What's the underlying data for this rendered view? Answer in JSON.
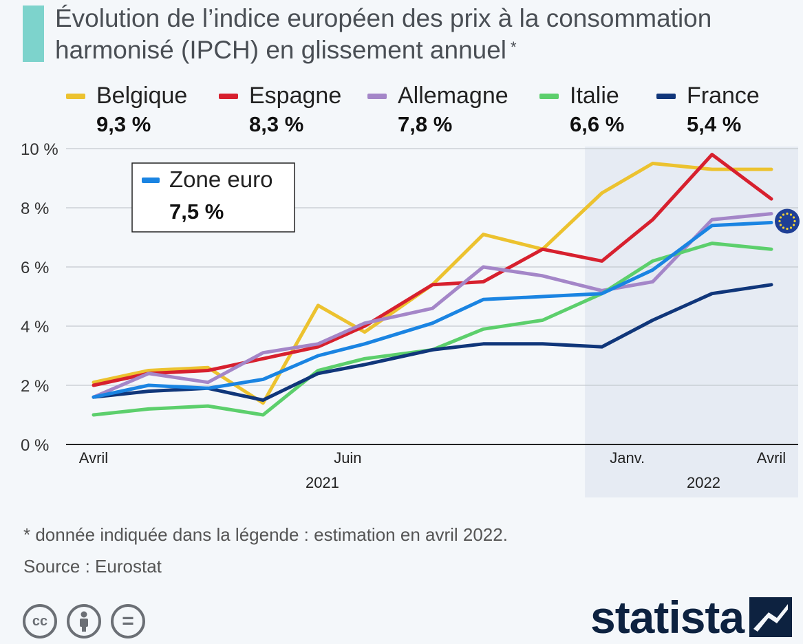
{
  "title": {
    "text": "Évolution de l’indice européen des prix à la consommation harmonisé (IPCH) en glissement annuel",
    "asterisk": "*"
  },
  "legend": [
    {
      "name": "Belgique",
      "value": "9,3 %",
      "color": "#ecc22f"
    },
    {
      "name": "Espagne",
      "value": "8,3 %",
      "color": "#d7202e"
    },
    {
      "name": "Allemagne",
      "value": "7,8 %",
      "color": "#a486c8"
    },
    {
      "name": "Italie",
      "value": "6,6 %",
      "color": "#5ccf6c"
    },
    {
      "name": "France",
      "value": "5,4 %",
      "color": "#10367a"
    }
  ],
  "zone_euro": {
    "name": "Zone euro",
    "value": "7,5 %",
    "color": "#1a84e2"
  },
  "chart_data": {
    "type": "line",
    "title": "Évolution de l’indice européen des prix à la consommation harmonisé (IPCH) en glissement annuel",
    "xlabel": "",
    "ylabel": "",
    "ylim": [
      0,
      10
    ],
    "yticks": [
      0,
      2,
      4,
      6,
      8,
      10
    ],
    "ytick_labels": [
      "0 %",
      "2 %",
      "4 %",
      "6 %",
      "8 %",
      "10 %"
    ],
    "x": [
      "2021-04",
      "2021-05",
      "2021-06",
      "2021-07",
      "2021-08",
      "2021-09",
      "2021-10",
      "2021-11",
      "2021-12",
      "2022-01",
      "2022-02",
      "2022-03",
      "2022-04"
    ],
    "xtick_labels": [
      {
        "index": 0,
        "label": "Avril"
      },
      {
        "index": 3,
        "label": "Juin"
      },
      {
        "index": 6.3,
        "label": "Janv."
      },
      {
        "index": 8,
        "label": "Avril"
      }
    ],
    "year_labels": [
      {
        "label": "2021",
        "index": 2.7
      },
      {
        "label": "2022",
        "index": 7.2
      }
    ],
    "highlight_region": {
      "from_index": 5.8,
      "to_index": 8.4,
      "label": "2022"
    },
    "series": [
      {
        "name": "Belgique",
        "color": "#ecc22f",
        "values": [
          2.1,
          2.5,
          2.6,
          1.4,
          4.7,
          3.8,
          5.4,
          7.1,
          6.6,
          8.5,
          9.5,
          9.3,
          9.3
        ],
        "x_index": [
          0,
          0.65,
          1.35,
          2.0,
          2.65,
          3.2,
          4.0,
          4.6,
          5.3,
          6.0,
          6.6,
          7.3,
          8.0
        ]
      },
      {
        "name": "Espagne",
        "color": "#d7202e",
        "values": [
          2.0,
          2.4,
          2.5,
          2.9,
          3.3,
          4.0,
          5.4,
          5.5,
          6.6,
          6.2,
          7.6,
          9.8,
          8.3
        ],
        "x_index": [
          0,
          0.65,
          1.35,
          2.0,
          2.65,
          3.2,
          4.0,
          4.6,
          5.3,
          6.0,
          6.6,
          7.3,
          8.0
        ]
      },
      {
        "name": "Allemagne",
        "color": "#a486c8",
        "values": [
          1.6,
          2.4,
          2.1,
          3.1,
          3.4,
          4.1,
          4.6,
          6.0,
          5.7,
          5.2,
          5.5,
          7.6,
          7.8
        ],
        "x_index": [
          0,
          0.65,
          1.35,
          2.0,
          2.65,
          3.2,
          4.0,
          4.6,
          5.3,
          6.0,
          6.6,
          7.3,
          8.0
        ]
      },
      {
        "name": "Italie",
        "color": "#5ccf6c",
        "values": [
          1.0,
          1.2,
          1.3,
          1.0,
          2.5,
          2.9,
          3.2,
          3.9,
          4.2,
          5.1,
          6.2,
          6.8,
          6.6
        ],
        "x_index": [
          0,
          0.65,
          1.35,
          2.0,
          2.65,
          3.2,
          4.0,
          4.6,
          5.3,
          6.0,
          6.6,
          7.3,
          8.0
        ]
      },
      {
        "name": "France",
        "color": "#10367a",
        "values": [
          1.6,
          1.8,
          1.9,
          1.5,
          2.4,
          2.7,
          3.2,
          3.4,
          3.4,
          3.3,
          4.2,
          5.1,
          5.4
        ],
        "x_index": [
          0,
          0.65,
          1.35,
          2.0,
          2.65,
          3.2,
          4.0,
          4.6,
          5.3,
          6.0,
          6.6,
          7.3,
          8.0
        ]
      },
      {
        "name": "Zone euro",
        "color": "#1a84e2",
        "values": [
          1.6,
          2.0,
          1.9,
          2.2,
          3.0,
          3.4,
          4.1,
          4.9,
          5.0,
          5.1,
          5.9,
          7.4,
          7.5
        ],
        "x_index": [
          0,
          0.65,
          1.35,
          2.0,
          2.65,
          3.2,
          4.0,
          4.6,
          5.3,
          6.0,
          6.6,
          7.3,
          8.0
        ]
      }
    ]
  },
  "footnote": "* donnée indiquée dans la légende : estimation en avril 2022.",
  "source": "Source : Eurostat",
  "license_icons": [
    {
      "name": "cc-icon",
      "glyph": "cc"
    },
    {
      "name": "by-icon",
      "glyph": ""
    },
    {
      "name": "nd-icon",
      "glyph": "="
    }
  ],
  "brand": "statista"
}
